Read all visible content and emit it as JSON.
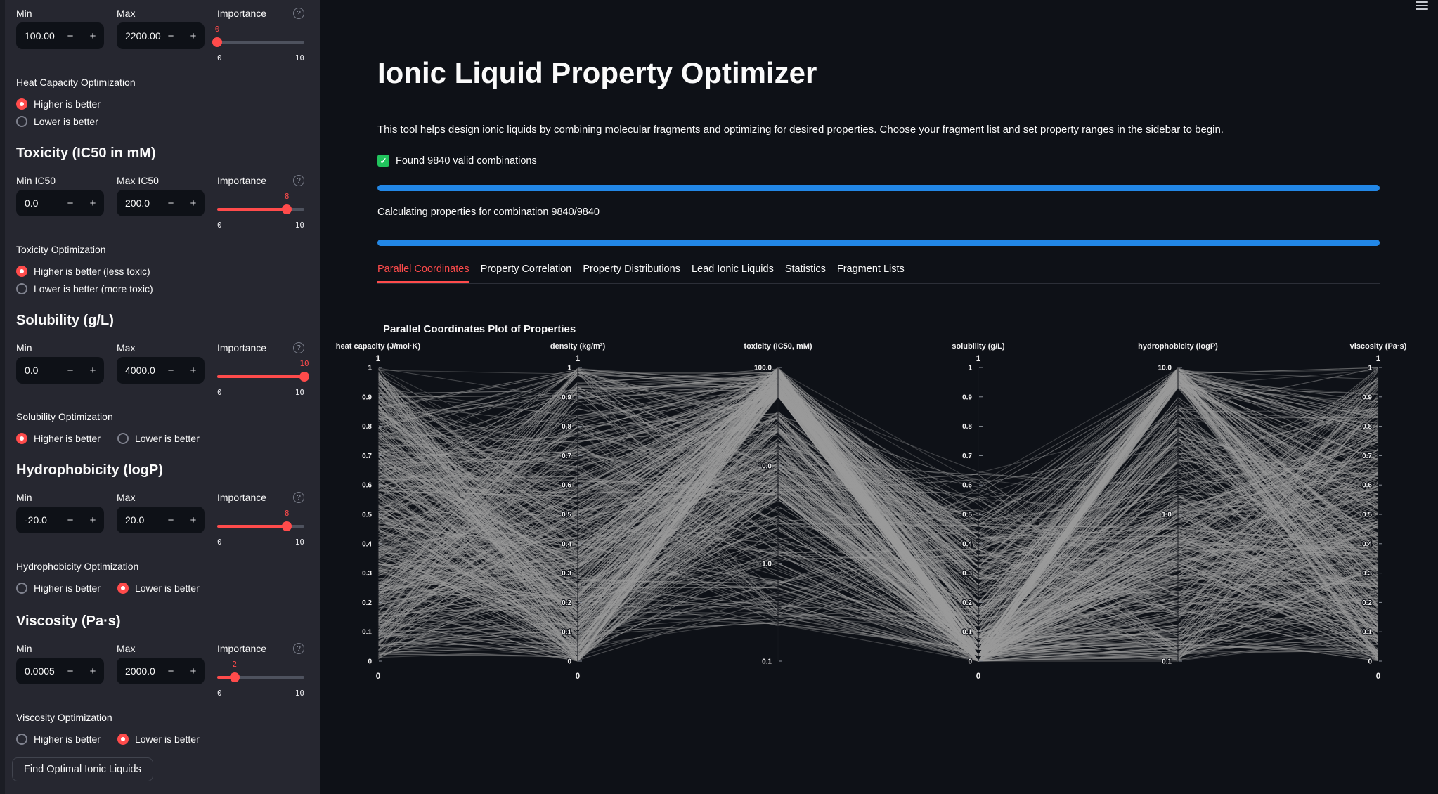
{
  "header": {
    "menu_icon": "hamburger"
  },
  "sidebar": {
    "groups": [
      {
        "header": null,
        "min": {
          "label": "Min",
          "value": "100.00"
        },
        "max": {
          "label": "Max",
          "value": "2200.00"
        },
        "importance": {
          "label": "Importance",
          "value": 0,
          "min": 0,
          "max": 10
        },
        "optimization": {
          "label": "Heat Capacity Optimization",
          "options": [
            "Higher is better",
            "Lower is better"
          ],
          "selected": 0,
          "layout": "vertical"
        }
      },
      {
        "header": "Toxicity (IC50 in mM)",
        "min": {
          "label": "Min IC50",
          "value": "0.0"
        },
        "max": {
          "label": "Max IC50",
          "value": "200.0"
        },
        "importance": {
          "label": "Importance",
          "value": 8,
          "min": 0,
          "max": 10
        },
        "optimization": {
          "label": "Toxicity Optimization",
          "options": [
            "Higher is better (less toxic)",
            "Lower is better (more toxic)"
          ],
          "selected": 0,
          "layout": "vertical"
        }
      },
      {
        "header": "Solubility (g/L)",
        "min": {
          "label": "Min",
          "value": "0.0"
        },
        "max": {
          "label": "Max",
          "value": "4000.0"
        },
        "importance": {
          "label": "Importance",
          "value": 10,
          "min": 0,
          "max": 10
        },
        "optimization": {
          "label": "Solubility Optimization",
          "options": [
            "Higher is better",
            "Lower is better"
          ],
          "selected": 0,
          "layout": "horizontal"
        }
      },
      {
        "header": "Hydrophobicity (logP)",
        "min": {
          "label": "Min",
          "value": "-20.0"
        },
        "max": {
          "label": "Max",
          "value": "20.0"
        },
        "importance": {
          "label": "Importance",
          "value": 8,
          "min": 0,
          "max": 10
        },
        "optimization": {
          "label": "Hydrophobicity Optimization",
          "options": [
            "Higher is better",
            "Lower is better"
          ],
          "selected": 1,
          "layout": "horizontal"
        }
      },
      {
        "header": "Viscosity (Pa·s)",
        "min": {
          "label": "Min",
          "value": "0.0005"
        },
        "max": {
          "label": "Max",
          "value": "2000.0"
        },
        "importance": {
          "label": "Importance",
          "value": 2,
          "min": 0,
          "max": 10
        },
        "optimization": {
          "label": "Viscosity Optimization",
          "options": [
            "Higher is better",
            "Lower is better"
          ],
          "selected": 1,
          "layout": "horizontal"
        }
      }
    ],
    "find_button_label": "Find Optimal Ionic Liquids",
    "help_glyph": "?",
    "minus_glyph": "−",
    "plus_glyph": "+"
  },
  "main": {
    "title": "Ionic Liquid Property Optimizer",
    "description": "This tool helps design ionic liquids by combining molecular fragments and optimizing for desired properties. Choose your fragment list and set property ranges in the sidebar to begin.",
    "success_message": "Found 9840 valid combinations",
    "check_glyph": "✓",
    "progress_top": {
      "percent": 100
    },
    "status_text": "Calculating properties for combination 9840/9840",
    "progress_bottom": {
      "percent": 100
    },
    "tabs": [
      "Parallel Coordinates",
      "Property Correlation",
      "Property Distributions",
      "Lead Ionic Liquids",
      "Statistics",
      "Fragment Lists"
    ],
    "active_tab": 0
  },
  "chart_data": {
    "type": "parallel_coordinates",
    "title": "Parallel Coordinates Plot of Properties",
    "n_combinations_depicted": 9840,
    "axes": [
      {
        "title": "heat capacity (J/mol·K)",
        "scale": "linear",
        "range": [
          0,
          1
        ],
        "ticks": "linear",
        "host_labels": [
          "1",
          "0"
        ]
      },
      {
        "title": "density (kg/m³)",
        "scale": "linear",
        "range": [
          0,
          1
        ],
        "ticks": "linear",
        "host_labels": [
          "1",
          "0"
        ]
      },
      {
        "title": "toxicity (IC50, mM)",
        "scale": "log",
        "range": [
          0.1,
          100
        ],
        "ticks": [
          {
            "label": "100.0",
            "t": 0
          },
          {
            "label": "10.0",
            "t": 0.335
          },
          {
            "label": "1.0",
            "t": 0.667
          },
          {
            "label": "0.1",
            "t": 1
          }
        ],
        "host_labels": null
      },
      {
        "title": "solubility (g/L)",
        "scale": "linear",
        "range": [
          0,
          1
        ],
        "ticks": "linear",
        "host_labels": [
          "1",
          "0"
        ]
      },
      {
        "title": "hydrophobicity (logP)",
        "scale": "log",
        "range": [
          0.1,
          10
        ],
        "ticks": [
          {
            "label": "10.0",
            "t": 0
          },
          {
            "label": "1.0",
            "t": 0.5
          },
          {
            "label": "0.1",
            "t": 1
          }
        ],
        "host_labels": null
      },
      {
        "title": "viscosity (Pa·s)",
        "scale": "linear",
        "range": [
          0,
          1
        ],
        "ticks": "linear",
        "host_labels": [
          "1",
          "0"
        ]
      }
    ],
    "linear_tick_labels": [
      "1",
      "0.9",
      "0.8",
      "0.7",
      "0.6",
      "0.5",
      "0.4",
      "0.3",
      "0.2",
      "0.1",
      "0"
    ],
    "style": {
      "line_color": "#9b9b9b",
      "line_width": 1.15,
      "axis_color": "#14161c",
      "tick_color": "#8a8f98",
      "label_color": "#f2f2f2",
      "grid": false,
      "legend": false
    },
    "generator": {
      "seed": 1337,
      "n_lines": 520,
      "dists": [
        [
          {
            "w": 1.0,
            "type": "uniform",
            "lo": 0.0,
            "hi": 1.0
          }
        ],
        [
          {
            "w": 0.72,
            "type": "pow",
            "p": 1.4,
            "scale": 0.6
          },
          {
            "w": 0.21,
            "type": "uniform",
            "lo": 0.6,
            "hi": 0.95
          },
          {
            "w": 0.07,
            "type": "uniform",
            "lo": 0.97,
            "hi": 1.0
          }
        ],
        [
          {
            "w": 0.45,
            "type": "uniform",
            "lo": 0.9,
            "hi": 1.0
          },
          {
            "w": 0.3,
            "type": "uniform",
            "lo": 0.55,
            "hi": 0.85
          },
          {
            "w": 0.25,
            "type": "uniform",
            "lo": 0.12,
            "hi": 0.6
          }
        ],
        [
          {
            "w": 0.3,
            "type": "uniform",
            "lo": 0.005,
            "hi": 0.05,
            "quant": 0.02
          },
          {
            "w": 0.5,
            "type": "pow",
            "p": 2.2,
            "scale": 0.5,
            "quant": 0.02
          },
          {
            "w": 0.2,
            "type": "uniform",
            "lo": 0.05,
            "hi": 0.65
          }
        ],
        [
          {
            "w": 0.22,
            "type": "uniform",
            "lo": 0.93,
            "hi": 1.0
          },
          {
            "w": 0.43,
            "type": "pow",
            "p": 1.3,
            "scale": 0.6
          },
          {
            "w": 0.35,
            "type": "uniform",
            "lo": 0.25,
            "hi": 0.9
          }
        ],
        [
          {
            "w": 0.55,
            "type": "pow",
            "p": 1.5,
            "scale": 1.0
          },
          {
            "w": 0.45,
            "type": "uniform",
            "lo": 0.0,
            "hi": 1.0
          }
        ]
      ]
    }
  },
  "colors": {
    "accent": "#ff4b4b",
    "progress_blue": "#2287e6",
    "success_green": "#21c45d",
    "sidebar_bg": "#262730",
    "app_bg": "#0e1117",
    "line_gray": "#9b9b9b"
  }
}
